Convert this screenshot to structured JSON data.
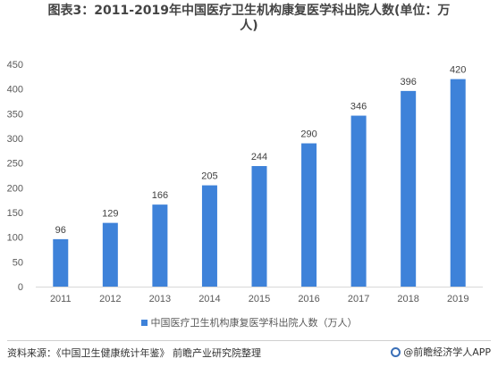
{
  "header": {
    "title_line1": "图表3：2011-2019年中国医疗卫生机构康复医学科出院人数(单位：万",
    "title_line2": "人)"
  },
  "chart_data": {
    "type": "bar",
    "categories": [
      "2011",
      "2012",
      "2013",
      "2014",
      "2015",
      "2016",
      "2017",
      "2018",
      "2019"
    ],
    "series": [
      {
        "name": "中国医疗卫生机构康复医学科出院人数（万人）",
        "values": [
          96,
          129,
          166,
          205,
          244,
          290,
          346,
          396,
          420
        ]
      }
    ],
    "ylim": [
      0,
      450
    ],
    "yticks": [
      0,
      50,
      100,
      150,
      200,
      250,
      300,
      350,
      400,
      450
    ],
    "grid": false,
    "data_labels": true,
    "legend_position": "bottom",
    "bar_color": "#3e82d9"
  },
  "legend": {
    "label": "中国医疗卫生机构康复医学科出院人数（万人）"
  },
  "footer": {
    "source": "资料来源：《中国卫生健康统计年鉴》 前瞻产业研究院整理",
    "brand": "@前瞻经济学人APP"
  }
}
